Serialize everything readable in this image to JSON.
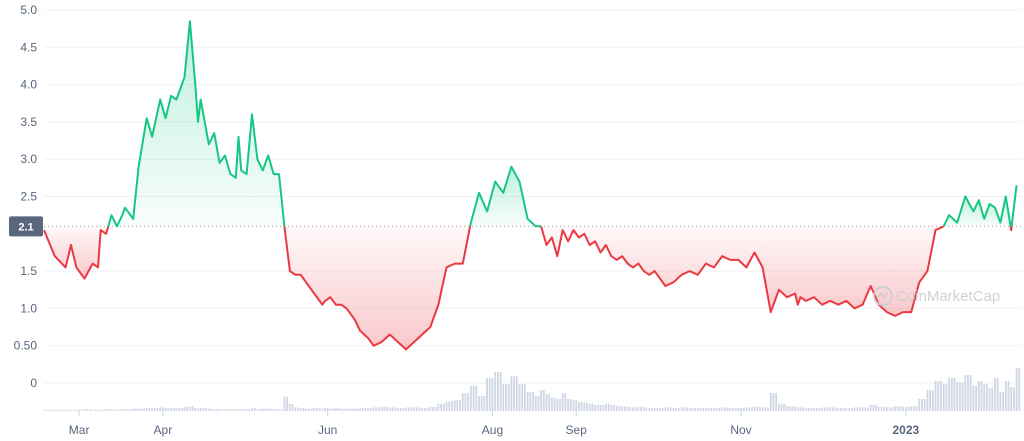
{
  "watermark": "CoinMarketCap",
  "colors": {
    "up": "#16c784",
    "down": "#ea3943",
    "grid": "#eff2f5",
    "volume": "#cfd6e4",
    "badge": "#58667e",
    "axis_text": "#58667e"
  },
  "chart_data": {
    "type": "area",
    "baseline": 2.1,
    "baseline_label": "2.1",
    "ylim": [
      -0.4,
      5.0
    ],
    "y_ticks": [
      "5.0",
      "4.5",
      "4.0",
      "3.5",
      "3.0",
      "2.5",
      "1.5",
      "1.0",
      "0.50",
      "0"
    ],
    "x_ticks": [
      "Mar",
      "Apr",
      "Jun",
      "Aug",
      "Sep",
      "Nov",
      "2023"
    ],
    "price_days": [
      0,
      4,
      8,
      10,
      12,
      15,
      18,
      20,
      21,
      23,
      25,
      27,
      29,
      30,
      33,
      35,
      38,
      40,
      43,
      45,
      47,
      49,
      52,
      54,
      56,
      57,
      58,
      61,
      63,
      65,
      67,
      69,
      71,
      72,
      73,
      75,
      77,
      79,
      81,
      83,
      85,
      87,
      89,
      91,
      93,
      95,
      97,
      100,
      102,
      103,
      104,
      106,
      108,
      110,
      112,
      115,
      117,
      120,
      122,
      125,
      128,
      131,
      134,
      137,
      140,
      143,
      146,
      149,
      152,
      155,
      158,
      161,
      164,
      167,
      170,
      173,
      176,
      179,
      182,
      184,
      186,
      188,
      190,
      192,
      194,
      196,
      198,
      200,
      202,
      204,
      206,
      208,
      210,
      212,
      214,
      216,
      218,
      220,
      222,
      224,
      226,
      228,
      230,
      233,
      236,
      239,
      242,
      245,
      248,
      251,
      254,
      257,
      260,
      263,
      266,
      269,
      272,
      275,
      278,
      279,
      280,
      282,
      285,
      288,
      291,
      294,
      297,
      300,
      303,
      306,
      309,
      312,
      315,
      318,
      321,
      324,
      327,
      330,
      333,
      335,
      338,
      341,
      344,
      346,
      348,
      350,
      352,
      354,
      356,
      358,
      360,
      362
    ],
    "price": [
      2.05,
      1.7,
      1.55,
      1.85,
      1.55,
      1.4,
      1.6,
      1.55,
      2.05,
      2.0,
      2.25,
      2.1,
      2.25,
      2.35,
      2.2,
      2.9,
      3.55,
      3.3,
      3.8,
      3.55,
      3.85,
      3.8,
      4.1,
      4.85,
      4.0,
      3.5,
      3.8,
      3.2,
      3.35,
      2.95,
      3.05,
      2.8,
      2.75,
      3.3,
      2.85,
      2.8,
      3.6,
      3.0,
      2.85,
      3.05,
      2.8,
      2.8,
      2.1,
      1.5,
      1.45,
      1.45,
      1.35,
      1.2,
      1.1,
      1.05,
      1.1,
      1.15,
      1.05,
      1.05,
      1.0,
      0.85,
      0.7,
      0.6,
      0.5,
      0.55,
      0.65,
      0.55,
      0.45,
      0.55,
      0.65,
      0.75,
      1.05,
      1.55,
      1.6,
      1.6,
      2.15,
      2.55,
      2.3,
      2.7,
      2.55,
      2.9,
      2.7,
      2.2,
      2.1,
      2.1,
      1.85,
      1.95,
      1.7,
      2.05,
      1.9,
      2.05,
      1.95,
      2.0,
      1.85,
      1.9,
      1.75,
      1.85,
      1.7,
      1.65,
      1.7,
      1.6,
      1.55,
      1.6,
      1.5,
      1.45,
      1.5,
      1.4,
      1.3,
      1.35,
      1.45,
      1.5,
      1.45,
      1.6,
      1.55,
      1.7,
      1.65,
      1.65,
      1.55,
      1.75,
      1.55,
      0.95,
      1.25,
      1.15,
      1.2,
      1.05,
      1.15,
      1.1,
      1.15,
      1.05,
      1.1,
      1.05,
      1.1,
      1.0,
      1.05,
      1.3,
      1.05,
      0.95,
      0.9,
      0.95,
      0.95,
      1.35,
      1.5,
      2.05,
      2.1,
      2.25,
      2.15,
      2.5,
      2.3,
      2.45,
      2.2,
      2.4,
      2.35,
      2.15,
      2.5,
      2.05,
      2.65
    ],
    "volume": [
      0.02,
      0.02,
      0.02,
      0.02,
      0.02,
      0.03,
      0.02,
      0.02,
      0.02,
      0.03,
      0.03,
      0.02,
      0.03,
      0.03,
      0.04,
      0.04,
      0.05,
      0.05,
      0.06,
      0.05,
      0.05,
      0.05,
      0.07,
      0.08,
      0.05,
      0.04,
      0.05,
      0.04,
      0.03,
      0.03,
      0.03,
      0.03,
      0.03,
      0.03,
      0.03,
      0.03,
      0.05,
      0.03,
      0.04,
      0.04,
      0.03,
      0.03,
      0.24,
      0.12,
      0.06,
      0.05,
      0.04,
      0.05,
      0.04,
      0.04,
      0.05,
      0.04,
      0.05,
      0.04,
      0.04,
      0.04,
      0.05,
      0.05,
      0.06,
      0.07,
      0.06,
      0.05,
      0.06,
      0.06,
      0.05,
      0.07,
      0.12,
      0.16,
      0.18,
      0.3,
      0.42,
      0.25,
      0.55,
      0.65,
      0.45,
      0.58,
      0.45,
      0.32,
      0.25,
      0.35,
      0.28,
      0.22,
      0.2,
      0.3,
      0.2,
      0.18,
      0.15,
      0.14,
      0.12,
      0.1,
      0.1,
      0.12,
      0.1,
      0.08,
      0.08,
      0.07,
      0.06,
      0.07,
      0.06,
      0.05,
      0.05,
      0.05,
      0.06,
      0.05,
      0.06,
      0.05,
      0.05,
      0.05,
      0.05,
      0.06,
      0.05,
      0.05,
      0.06,
      0.07,
      0.06,
      0.3,
      0.12,
      0.08,
      0.07,
      0.06,
      0.06,
      0.05,
      0.05,
      0.06,
      0.06,
      0.05,
      0.05,
      0.06,
      0.06,
      0.1,
      0.07,
      0.06,
      0.08,
      0.07,
      0.08,
      0.2,
      0.35,
      0.5,
      0.45,
      0.55,
      0.48,
      0.6,
      0.42,
      0.5,
      0.45,
      0.38,
      0.55,
      0.32,
      0.5,
      0.4,
      0.72
    ]
  }
}
